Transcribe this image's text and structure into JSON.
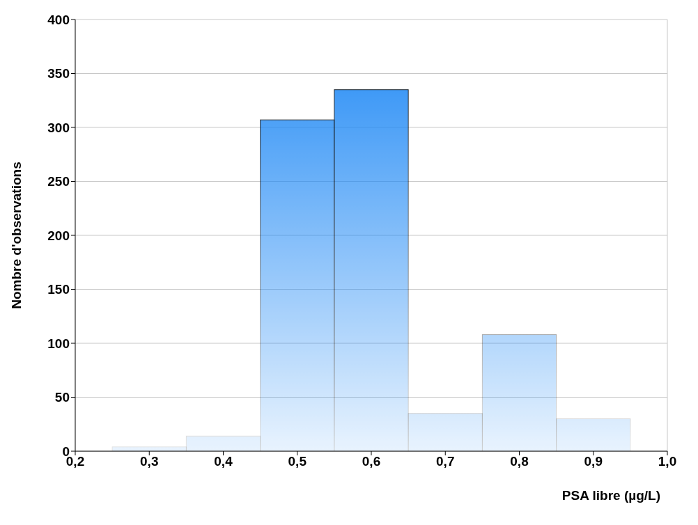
{
  "chart_data": {
    "type": "histogram",
    "xlabel": "PSA libre (µg/L)",
    "ylabel": "Nombre d'observations",
    "bins": [
      0.25,
      0.35,
      0.45,
      0.55,
      0.65,
      0.75,
      0.85,
      0.95
    ],
    "values": [
      4,
      14,
      307,
      335,
      35,
      108,
      30
    ],
    "color": "#1e88f5",
    "xlim": [
      0.2,
      1.0
    ],
    "xticks": [
      {
        "value": 0.2,
        "label": "0,2"
      },
      {
        "value": 0.3,
        "label": "0,3"
      },
      {
        "value": 0.4,
        "label": "0,4"
      },
      {
        "value": 0.5,
        "label": "0,5"
      },
      {
        "value": 0.6,
        "label": "0,6"
      },
      {
        "value": 0.7,
        "label": "0,7"
      },
      {
        "value": 0.8,
        "label": "0,8"
      },
      {
        "value": 0.9,
        "label": "0,9"
      },
      {
        "value": 1.0,
        "label": "1,0"
      }
    ],
    "ylim": [
      0,
      400
    ],
    "yticks": [
      0,
      50,
      100,
      150,
      200,
      250,
      300,
      350,
      400
    ],
    "grid": "y"
  }
}
